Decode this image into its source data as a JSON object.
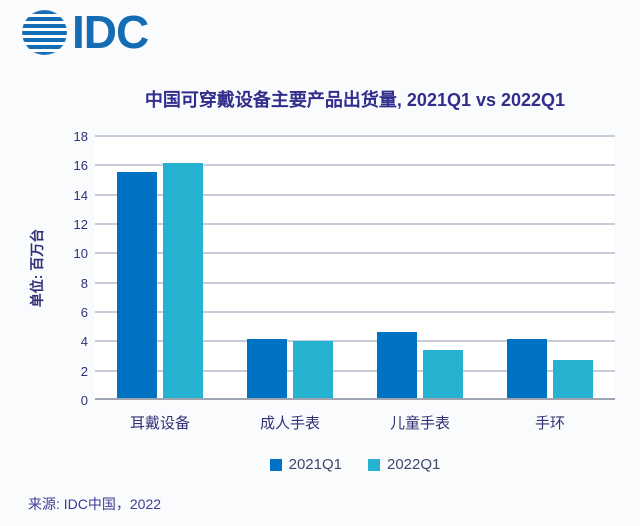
{
  "page": {
    "background": "#fafbfd"
  },
  "logo": {
    "text": "IDC",
    "color": "#146CB4"
  },
  "chart_data": {
    "type": "bar",
    "title": "中国可穿戴设备主要产品出货量, 2021Q1 vs 2022Q1",
    "ylabel": "单位: 百万台",
    "xlabel": "",
    "categories": [
      "耳戴设备",
      "成人手表",
      "儿童手表",
      "手环"
    ],
    "series": [
      {
        "name": "2021Q1",
        "color": "#0072C3",
        "values": [
          15.4,
          4.0,
          4.5,
          4.0
        ]
      },
      {
        "name": "2022Q1",
        "color": "#25B2D1",
        "values": [
          16.0,
          3.9,
          3.3,
          2.6
        ]
      }
    ],
    "ylim": [
      0,
      18
    ],
    "tick_step": 2,
    "grid": true,
    "legend_position": "bottom"
  },
  "source": {
    "label": "来源: IDC中国，2022"
  }
}
